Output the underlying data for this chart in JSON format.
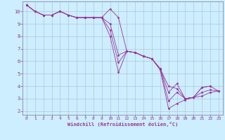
{
  "xlabel": "Windchill (Refroidissement éolien,°C)",
  "bg_color": "#cceeff",
  "line_color": "#993399",
  "grid_color": "#aabbcc",
  "spine_color": "#8888aa",
  "xlim": [
    -0.5,
    23.5
  ],
  "ylim": [
    1.7,
    10.8
  ],
  "yticks": [
    2,
    3,
    4,
    5,
    6,
    7,
    8,
    9,
    10
  ],
  "xticks": [
    0,
    1,
    2,
    3,
    4,
    5,
    6,
    7,
    8,
    9,
    10,
    11,
    12,
    13,
    14,
    15,
    16,
    17,
    18,
    19,
    20,
    21,
    22,
    23
  ],
  "series": [
    {
      "x": [
        0,
        1,
        2,
        3,
        4,
        5,
        6,
        7,
        8,
        9,
        10,
        11,
        12,
        13,
        14,
        15,
        16,
        17,
        18,
        19,
        20,
        21,
        22
      ],
      "y": [
        10.5,
        10.0,
        9.7,
        9.7,
        10.0,
        9.7,
        9.5,
        9.5,
        9.5,
        9.5,
        10.2,
        9.5,
        6.8,
        6.7,
        6.4,
        6.2,
        5.4,
        4.0,
        3.8,
        3.0,
        3.1,
        3.9,
        4.0
      ]
    },
    {
      "x": [
        0,
        1,
        2,
        3,
        4,
        5,
        6,
        7,
        8,
        9,
        10,
        11,
        12,
        13,
        14,
        15,
        16,
        17,
        18,
        19,
        20,
        21,
        22,
        23
      ],
      "y": [
        10.5,
        10.0,
        9.7,
        9.7,
        10.0,
        9.7,
        9.5,
        9.5,
        9.5,
        9.5,
        8.5,
        5.9,
        6.8,
        6.7,
        6.4,
        6.2,
        5.3,
        2.2,
        2.6,
        2.9,
        3.1,
        3.2,
        3.5,
        3.6
      ]
    },
    {
      "x": [
        0,
        1,
        2,
        3,
        4,
        5,
        6,
        7,
        8,
        9,
        10,
        11,
        12,
        13,
        14,
        15,
        16,
        17,
        18,
        19,
        20,
        21,
        22,
        23
      ],
      "y": [
        10.5,
        10.0,
        9.7,
        9.7,
        10.0,
        9.7,
        9.5,
        9.5,
        9.5,
        9.5,
        8.0,
        5.1,
        6.8,
        6.7,
        6.4,
        6.2,
        5.4,
        2.8,
        3.5,
        3.0,
        3.1,
        3.5,
        3.7,
        3.6
      ]
    },
    {
      "x": [
        0,
        1,
        2,
        3,
        4,
        5,
        6,
        7,
        8,
        9,
        10,
        11,
        12,
        13,
        14,
        15,
        16,
        17,
        18,
        19,
        20,
        21,
        22,
        23
      ],
      "y": [
        10.5,
        10.0,
        9.7,
        9.7,
        10.0,
        9.7,
        9.5,
        9.5,
        9.5,
        9.5,
        9.0,
        6.5,
        6.8,
        6.7,
        6.4,
        6.2,
        5.4,
        3.5,
        4.2,
        3.0,
        3.1,
        3.9,
        4.0,
        3.6
      ]
    }
  ]
}
